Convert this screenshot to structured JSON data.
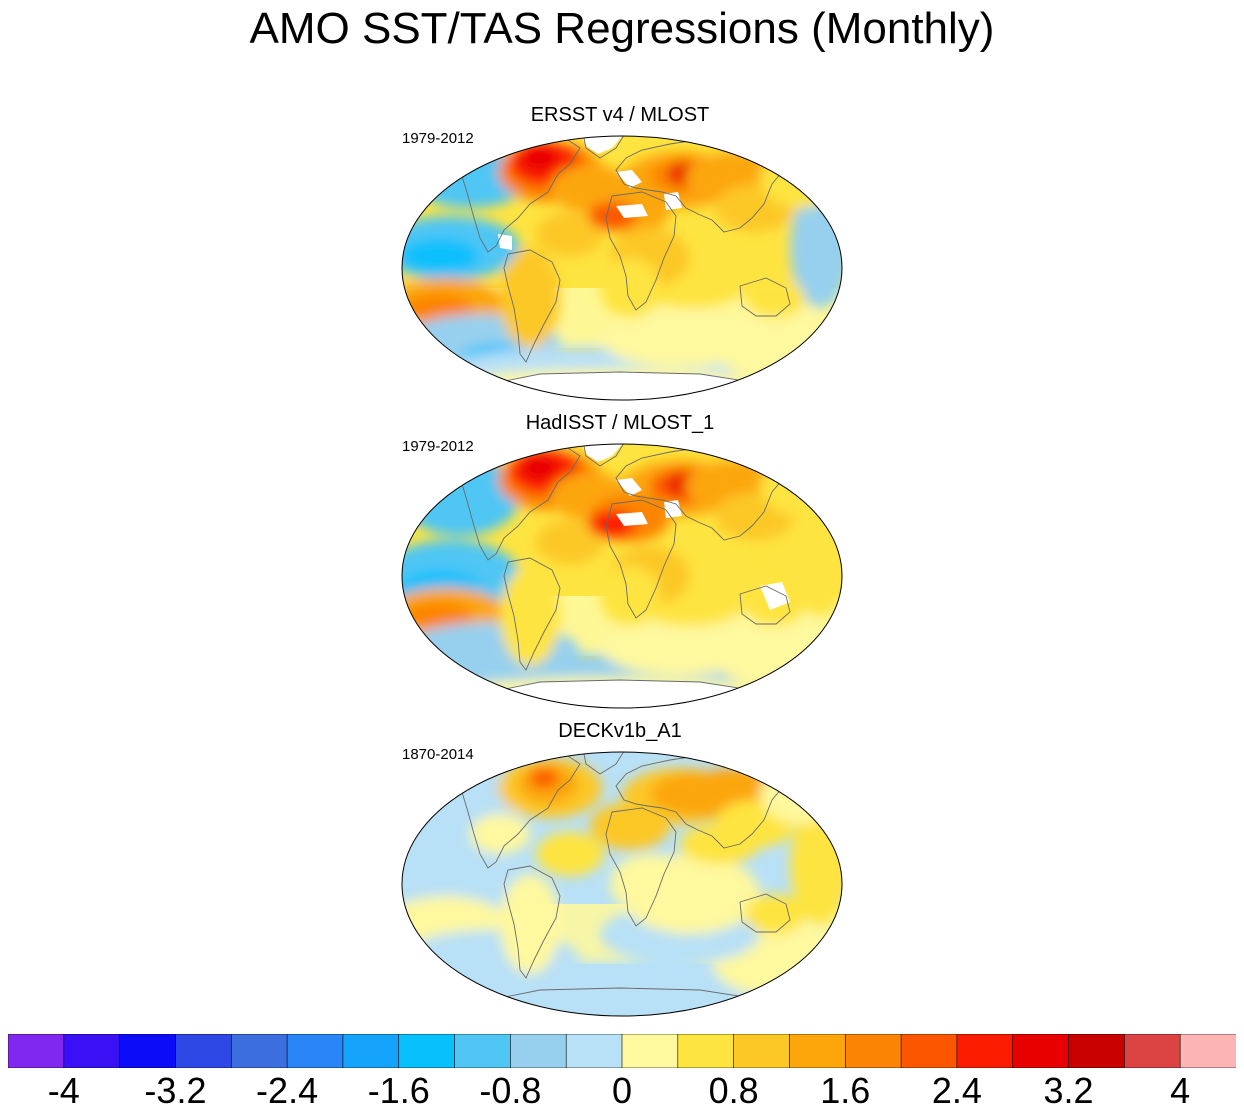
{
  "title": "AMO SST/TAS Regressions (Monthly)",
  "panels": [
    {
      "title": "ERSST v4 / MLOST",
      "period": "1979-2012"
    },
    {
      "title": "HadISST / MLOST_1",
      "period": "1979-2012"
    },
    {
      "title": "DECKv1b_A1",
      "period": "1870-2014"
    }
  ],
  "colorbar": {
    "levels": [
      -4,
      -3.6,
      -3.2,
      -2.8,
      -2.4,
      -2.0,
      -1.6,
      -1.2,
      -0.8,
      -0.4,
      0,
      0.4,
      0.8,
      1.2,
      1.6,
      2.0,
      2.4,
      2.8,
      3.2,
      3.6,
      4
    ],
    "colors": [
      "#8128f0",
      "#3a10f5",
      "#0c0cf8",
      "#2e48e6",
      "#3c6ee0",
      "#2a86f6",
      "#14a2fa",
      "#08c0fc",
      "#50c6f4",
      "#96d0ee",
      "#b8e0f6",
      "#fef89e",
      "#fee440",
      "#fcc826",
      "#fca60c",
      "#fc8404",
      "#fc5600",
      "#fc1c00",
      "#e80000",
      "#c80000",
      "#dc4444",
      "#fcb4b4"
    ],
    "tick_labels": [
      "-4",
      "-3.2",
      "-2.4",
      "-1.6",
      "-0.8",
      "0",
      "0.8",
      "1.6",
      "2.4",
      "3.2",
      "4"
    ]
  }
}
